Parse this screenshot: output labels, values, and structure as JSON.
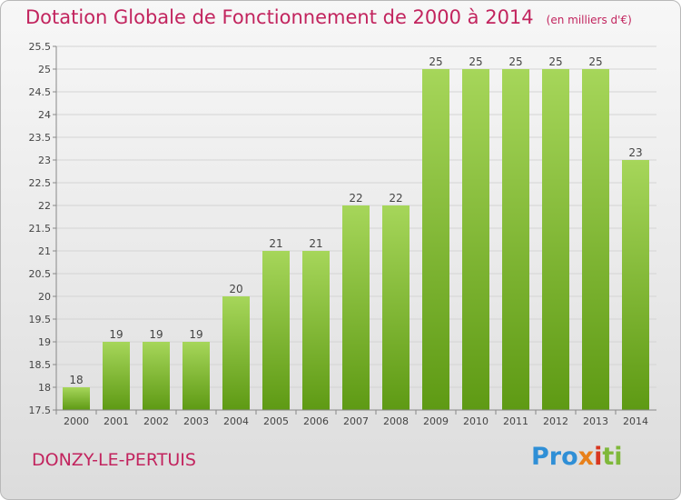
{
  "header": {
    "title": "Dotation Globale de Fonctionnement de 2000 à 2014",
    "unit": "(en milliers d'€)"
  },
  "footer": {
    "commune": "DONZY-LE-PERTUIS",
    "logo_text": "Proxiti"
  },
  "colors": {
    "title": "#c2245e",
    "bar_light": "#a6d65a",
    "bar_dark": "#5e9a14",
    "grid": "#d4d4d4"
  },
  "chart_data": {
    "type": "bar",
    "title": "Dotation Globale de Fonctionnement de 2000 à 2014",
    "subtitle": "(en milliers d'€)",
    "categories": [
      "2000",
      "2001",
      "2002",
      "2003",
      "2004",
      "2005",
      "2006",
      "2007",
      "2008",
      "2009",
      "2010",
      "2011",
      "2012",
      "2013",
      "2014"
    ],
    "values": [
      18,
      19,
      19,
      19,
      20,
      21,
      21,
      22,
      22,
      25,
      25,
      25,
      25,
      25,
      23
    ],
    "ylim": [
      17.5,
      25.5
    ],
    "yticks": [
      17.5,
      18,
      18.5,
      19,
      19.5,
      20,
      20.5,
      21,
      21.5,
      22,
      22.5,
      23,
      23.5,
      24,
      24.5,
      25,
      25.5
    ],
    "grid": true,
    "legend": "none",
    "xlabel": "",
    "ylabel": ""
  }
}
